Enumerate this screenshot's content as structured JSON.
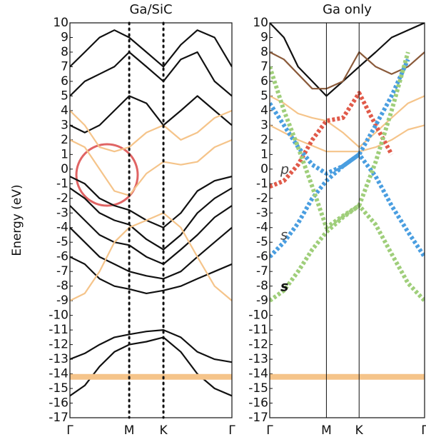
{
  "chart_data": [
    {
      "type": "line",
      "title": "Ga/SiC",
      "ylabel": "Energy (eV)",
      "vline_style": "dotted",
      "x": [
        0,
        0.25,
        0.5,
        0.75,
        1,
        1.29,
        1.577,
        1.87,
        2.15,
        2.44,
        2.732
      ],
      "xlim": [
        0,
        2.732
      ],
      "xticks": [
        {
          "value": 0,
          "label": "Γ"
        },
        {
          "value": 1,
          "label": "M"
        },
        {
          "value": 1.577,
          "label": "K"
        },
        {
          "value": 2.732,
          "label": "Γ"
        }
      ],
      "ylim": [
        -17,
        10
      ],
      "yticks": [
        -17,
        -16,
        -15,
        -14,
        -13,
        -12,
        -11,
        -10,
        -9,
        -8,
        -7,
        -6,
        -5,
        -4,
        -3,
        -2,
        -1,
        0,
        1,
        2,
        3,
        4,
        5,
        6,
        7,
        8,
        9,
        10
      ],
      "series": [
        {
          "color": "#111111",
          "values": [
            -0.5,
            -1,
            -2,
            -2.5,
            -2.8,
            -3.5,
            -4,
            -3,
            -1.5,
            -0.8,
            -0.5
          ]
        },
        {
          "color": "#111111",
          "values": [
            -1.3,
            -2,
            -3,
            -3.5,
            -3.8,
            -4.8,
            -5.5,
            -4.5,
            -3,
            -2,
            -1.3
          ]
        },
        {
          "color": "#111111",
          "values": [
            -2.5,
            -3.5,
            -4.5,
            -5,
            -5.2,
            -6,
            -6.5,
            -5.5,
            -4.5,
            -3.3,
            -2.5
          ]
        },
        {
          "color": "#111111",
          "values": [
            -4,
            -5,
            -6,
            -6.5,
            -7,
            -7.3,
            -7.5,
            -7,
            -6,
            -5,
            -4
          ]
        },
        {
          "color": "#111111",
          "values": [
            -6,
            -6.5,
            -7.5,
            -8,
            -8.2,
            -8.5,
            -8.3,
            -8,
            -7.5,
            -7,
            -6.5
          ]
        },
        {
          "color": "#111111",
          "values": [
            -13,
            -12.6,
            -12,
            -11.5,
            -11.3,
            -11.1,
            -11,
            -11.5,
            -12.5,
            -13,
            -13.2
          ]
        },
        {
          "color": "#111111",
          "values": [
            -15.5,
            -14.8,
            -13.5,
            -12.5,
            -12,
            -11.8,
            -11.5,
            -12.5,
            -14,
            -15,
            -15.5
          ]
        },
        {
          "color": "#111111",
          "values": [
            3,
            2.5,
            3,
            4,
            5,
            4.5,
            3,
            4,
            5,
            4,
            3
          ]
        },
        {
          "color": "#111111",
          "values": [
            5,
            6,
            6.5,
            7,
            8,
            7,
            6,
            7.5,
            8,
            6,
            5
          ]
        },
        {
          "color": "#111111",
          "values": [
            7,
            8,
            9,
            9.5,
            9,
            8,
            7,
            8.5,
            9.5,
            9,
            7
          ]
        },
        {
          "color": "#f5c48a",
          "values": [
            2,
            1.5,
            0,
            -1.5,
            -1.8,
            -0.3,
            0.5,
            0.3,
            0.5,
            1.5,
            2
          ]
        },
        {
          "color": "#f5c48a",
          "values": [
            -9,
            -8.5,
            -7,
            -5,
            -4,
            -3.5,
            -3,
            -4,
            -6,
            -8,
            -9
          ]
        },
        {
          "color": "#f5c48a",
          "values": [
            4,
            3,
            1.5,
            1.2,
            1.5,
            2.5,
            3,
            2,
            2.5,
            3.5,
            4
          ]
        },
        {
          "color": "#f5c48a",
          "width": 8,
          "values": [
            -14.2,
            -14.2,
            -14.2,
            -14.2,
            -14.2,
            -14.2,
            -14.2,
            -14.2,
            -14.2,
            -14.2,
            -14.2
          ]
        }
      ]
    },
    {
      "type": "line",
      "title": "Ga only",
      "vline_style": "solid",
      "x": [
        0,
        0.25,
        0.5,
        0.75,
        1,
        1.29,
        1.577,
        1.87,
        2.15,
        2.44,
        2.732
      ],
      "xlim": [
        0,
        2.732
      ],
      "xticks": [
        {
          "value": 0,
          "label": "Γ"
        },
        {
          "value": 1,
          "label": "M"
        },
        {
          "value": 1.577,
          "label": "K"
        },
        {
          "value": 2.732,
          "label": "Γ"
        }
      ],
      "ylim": [
        -17,
        10
      ],
      "yticks": [
        -17,
        -16,
        -15,
        -14,
        -13,
        -12,
        -11,
        -10,
        -9,
        -8,
        -7,
        -6,
        -5,
        -4,
        -3,
        -2,
        -1,
        0,
        1,
        2,
        3,
        4,
        5,
        6,
        7,
        8,
        9,
        10
      ],
      "annotations": [
        "p",
        "s",
        "s"
      ],
      "series": [
        {
          "color": "#111111",
          "values": [
            10,
            9,
            7,
            6,
            5,
            6,
            7,
            8,
            9,
            9.5,
            10
          ]
        },
        {
          "color": "#8a5a3a",
          "values": [
            8,
            7.5,
            6.5,
            5.5,
            5.5,
            6,
            8,
            7,
            6.5,
            7,
            8
          ]
        },
        {
          "color": "#f5c48a",
          "values": [
            3,
            2.5,
            2,
            1.6,
            1.2,
            1.2,
            1.2,
            1.5,
            2,
            2.7,
            3
          ]
        },
        {
          "color": "#f5c48a",
          "values": [
            5,
            4.5,
            3.8,
            3.5,
            3.3,
            2.5,
            1.5,
            2.5,
            3.5,
            4.5,
            5
          ]
        },
        {
          "color": "#f5c48a",
          "width": 8,
          "values": [
            -14.2,
            -14.2,
            -14.2,
            -14.2,
            -14.2,
            -14.2,
            -14.2,
            -14.2,
            -14.2,
            -14.2,
            -14.2
          ]
        },
        {
          "color": "#e05a4a",
          "style": "dotted",
          "values": [
            -1.2,
            -0.8,
            0.3,
            2,
            3.3,
            3.5,
            5.2,
            3,
            1,
            null,
            null
          ]
        },
        {
          "color": "#4a9ee0",
          "style": "dotted",
          "values": [
            -6,
            -5,
            -3.7,
            -2,
            -0.8,
            0.2,
            1,
            -0.5,
            -2.5,
            -4.3,
            -6
          ]
        },
        {
          "color": "#4a9ee0",
          "style": "dotted",
          "values": [
            4.5,
            3,
            1.5,
            0.3,
            -0.3,
            0.2,
            1,
            3,
            5,
            7.5,
            null
          ]
        },
        {
          "color": "#9fce7a",
          "style": "dotted",
          "values": [
            -9,
            -8.3,
            -7,
            -5.5,
            -4.3,
            -3.3,
            -2.5,
            -3.8,
            -5.8,
            -7.8,
            -9
          ]
        },
        {
          "color": "#9fce7a",
          "style": "dotted",
          "values": [
            7,
            4,
            1.5,
            -1.2,
            -4,
            -3.2,
            -2.5,
            0.5,
            4,
            8,
            null
          ]
        }
      ]
    }
  ]
}
